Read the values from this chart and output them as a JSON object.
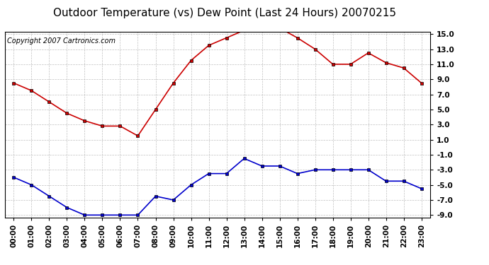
{
  "title": "Outdoor Temperature (vs) Dew Point (Last 24 Hours) 20070215",
  "copyright": "Copyright 2007 Cartronics.com",
  "hours": [
    "00:00",
    "01:00",
    "02:00",
    "03:00",
    "04:00",
    "05:00",
    "06:00",
    "07:00",
    "08:00",
    "09:00",
    "10:00",
    "11:00",
    "12:00",
    "13:00",
    "14:00",
    "15:00",
    "16:00",
    "17:00",
    "18:00",
    "19:00",
    "20:00",
    "21:00",
    "22:00",
    "23:00"
  ],
  "temp": [
    8.5,
    7.5,
    6.0,
    4.5,
    3.5,
    2.8,
    2.8,
    1.5,
    5.0,
    8.5,
    11.5,
    13.5,
    14.5,
    15.5,
    15.8,
    15.8,
    14.5,
    13.0,
    11.0,
    11.0,
    12.5,
    11.2,
    10.5,
    8.5
  ],
  "dew": [
    -4.0,
    -5.0,
    -6.5,
    -8.0,
    -9.0,
    -9.0,
    -9.0,
    -9.0,
    -6.5,
    -7.0,
    -5.0,
    -3.5,
    -3.5,
    -1.5,
    -2.5,
    -2.5,
    -3.5,
    -3.0,
    -3.0,
    -3.0,
    -3.0,
    -4.5,
    -4.5,
    -5.5
  ],
  "temp_color": "#cc0000",
  "dew_color": "#0000cc",
  "bg_color": "#ffffff",
  "plot_bg_color": "#ffffff",
  "grid_color": "#b0b0b0",
  "ylim_min": -9.0,
  "ylim_max": 15.0,
  "yticks": [
    -9.0,
    -7.0,
    -5.0,
    -3.0,
    -1.0,
    1.0,
    3.0,
    5.0,
    7.0,
    9.0,
    11.0,
    13.0,
    15.0
  ],
  "ytick_labels": [
    "-9.0",
    "-7.0",
    "-5.0",
    "-3.0",
    "-1.0",
    "1.0",
    "3.0",
    "5.0",
    "7.0",
    "9.0",
    "11.0",
    "13.0",
    "15.0"
  ],
  "title_fontsize": 11,
  "copyright_fontsize": 7,
  "tick_label_fontsize": 7.5,
  "marker_size": 3.0,
  "line_width": 1.2
}
